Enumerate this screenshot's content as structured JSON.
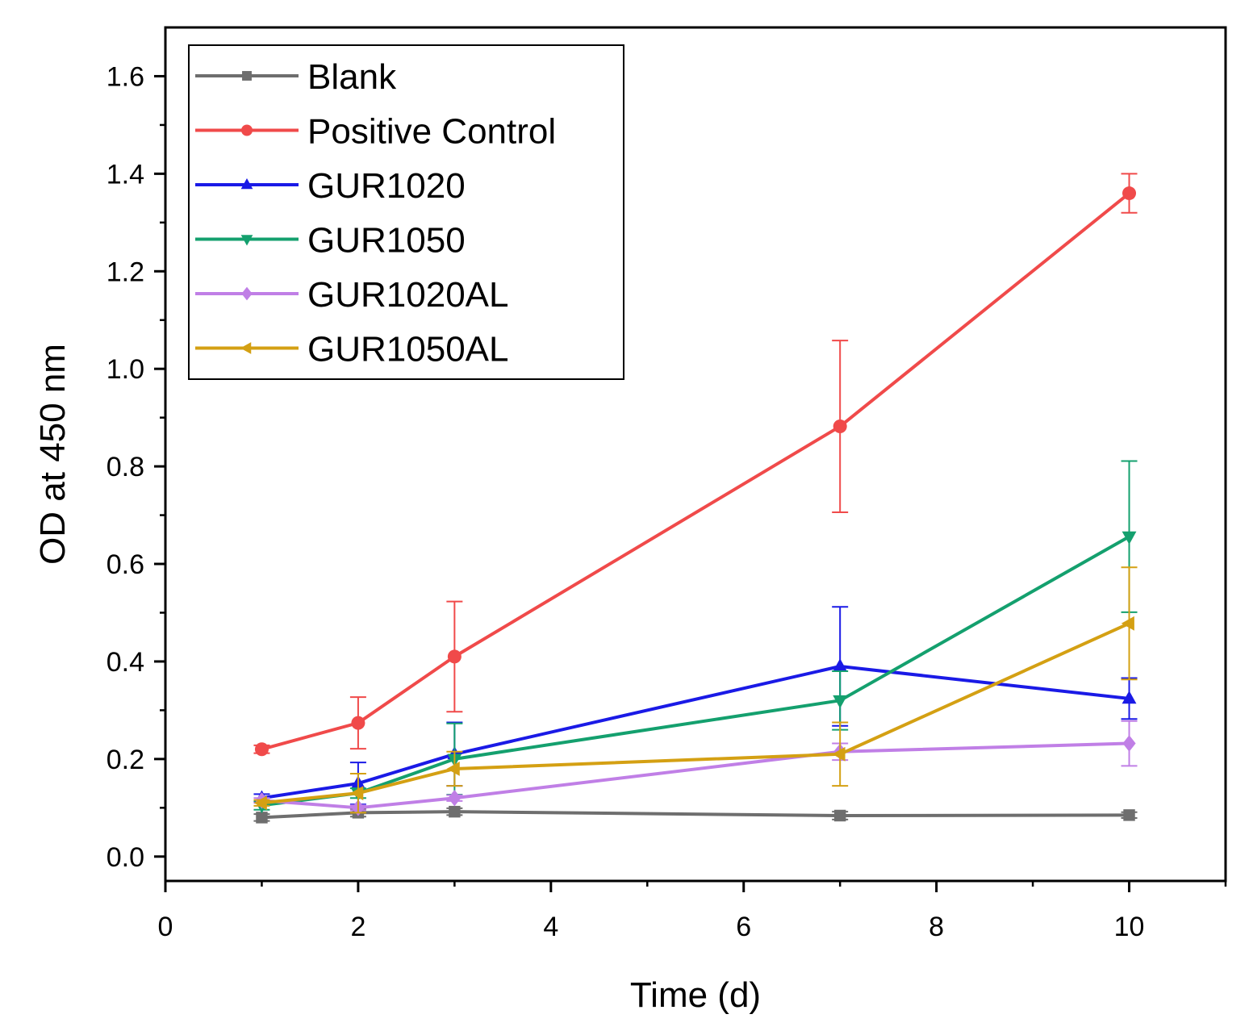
{
  "chart_data": {
    "type": "line",
    "title": "",
    "xlabel": "Time (d)",
    "ylabel": "OD at 450 nm",
    "xlim": [
      0,
      11
    ],
    "ylim": [
      -0.05,
      1.7
    ],
    "xticks": [
      0,
      2,
      4,
      6,
      8,
      10
    ],
    "xtick_labels": [
      "0",
      "2",
      "4",
      "6",
      "8",
      "10"
    ],
    "yticks": [
      0.0,
      0.2,
      0.4,
      0.6,
      0.8,
      1.0,
      1.2,
      1.4,
      1.6
    ],
    "ytick_labels": [
      "0.0",
      "0.2",
      "0.4",
      "0.6",
      "0.8",
      "1.0",
      "1.2",
      "1.4",
      "1.6"
    ],
    "grid": false,
    "legend_position": "top-left",
    "x": [
      1,
      2,
      3,
      7,
      10
    ],
    "series": [
      {
        "name": "Blank",
        "color": "#6e6e6e",
        "marker": "square",
        "values": [
          0.08,
          0.09,
          0.092,
          0.084,
          0.085
        ],
        "errors": [
          0.007,
          0.008,
          0.007,
          0.008,
          0.006
        ]
      },
      {
        "name": "Positive Control",
        "color": "#f04a4a",
        "marker": "circle",
        "values": [
          0.22,
          0.274,
          0.41,
          0.882,
          1.36
        ],
        "errors": [
          0.008,
          0.053,
          0.113,
          0.176,
          0.04
        ]
      },
      {
        "name": "GUR1020",
        "color": "#1a1ae6",
        "marker": "triangle-up",
        "values": [
          0.12,
          0.15,
          0.21,
          0.39,
          0.324
        ],
        "errors": [
          0.008,
          0.043,
          0.065,
          0.122,
          0.042
        ]
      },
      {
        "name": "GUR1050",
        "color": "#14a06e",
        "marker": "triangle-down",
        "values": [
          0.105,
          0.13,
          0.2,
          0.32,
          0.656
        ],
        "errors": [
          0.009,
          0.01,
          0.073,
          0.06,
          0.155
        ]
      },
      {
        "name": "GUR1020AL",
        "color": "#c07fe6",
        "marker": "diamond",
        "values": [
          0.115,
          0.1,
          0.12,
          0.215,
          0.232
        ],
        "errors": [
          0.005,
          0.005,
          0.006,
          0.017,
          0.046
        ]
      },
      {
        "name": "GUR1050AL",
        "color": "#d4a013",
        "marker": "triangle-left",
        "values": [
          0.11,
          0.13,
          0.18,
          0.21,
          0.478
        ],
        "errors": [
          0.006,
          0.04,
          0.035,
          0.065,
          0.115
        ]
      }
    ]
  }
}
